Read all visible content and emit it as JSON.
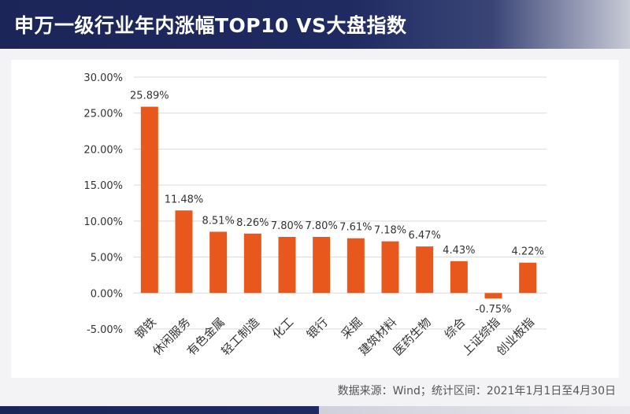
{
  "header": {
    "title": "申万一级行业年内涨幅TOP10 VS大盘指数"
  },
  "source_note": "数据来源：Wind；统计区间：2021年1月1日至4月30日",
  "colors": {
    "bar": "#e8581c",
    "header_bg": "#1f2a61",
    "grid": "#d9d9d9"
  },
  "chart_data": {
    "type": "bar",
    "title": "申万一级行业年内涨幅TOP10 VS大盘指数",
    "categories": [
      "钢铁",
      "休闲服务",
      "有色金属",
      "轻工制造",
      "化工",
      "银行",
      "采掘",
      "建筑材料",
      "医药生物",
      "综合",
      "上证综指",
      "创业板指"
    ],
    "values": [
      25.89,
      11.48,
      8.51,
      8.26,
      7.8,
      7.8,
      7.61,
      7.18,
      6.47,
      4.43,
      -0.75,
      4.22
    ],
    "data_labels": [
      "25.89%",
      "11.48%",
      "8.51%",
      "8.26%",
      "7.80%",
      "7.80%",
      "7.61%",
      "7.18%",
      "6.47%",
      "4.43%",
      "-0.75%",
      "4.22%"
    ],
    "yticks": [
      30,
      25,
      20,
      15,
      10,
      5,
      0,
      -5
    ],
    "ytick_labels": [
      "30.00%",
      "25.00%",
      "20.00%",
      "15.00%",
      "10.00%",
      "5.00%",
      "0.00%",
      "-5.00%"
    ],
    "ylim": [
      -5,
      30
    ],
    "grid": true,
    "xlabel": "",
    "ylabel": ""
  }
}
